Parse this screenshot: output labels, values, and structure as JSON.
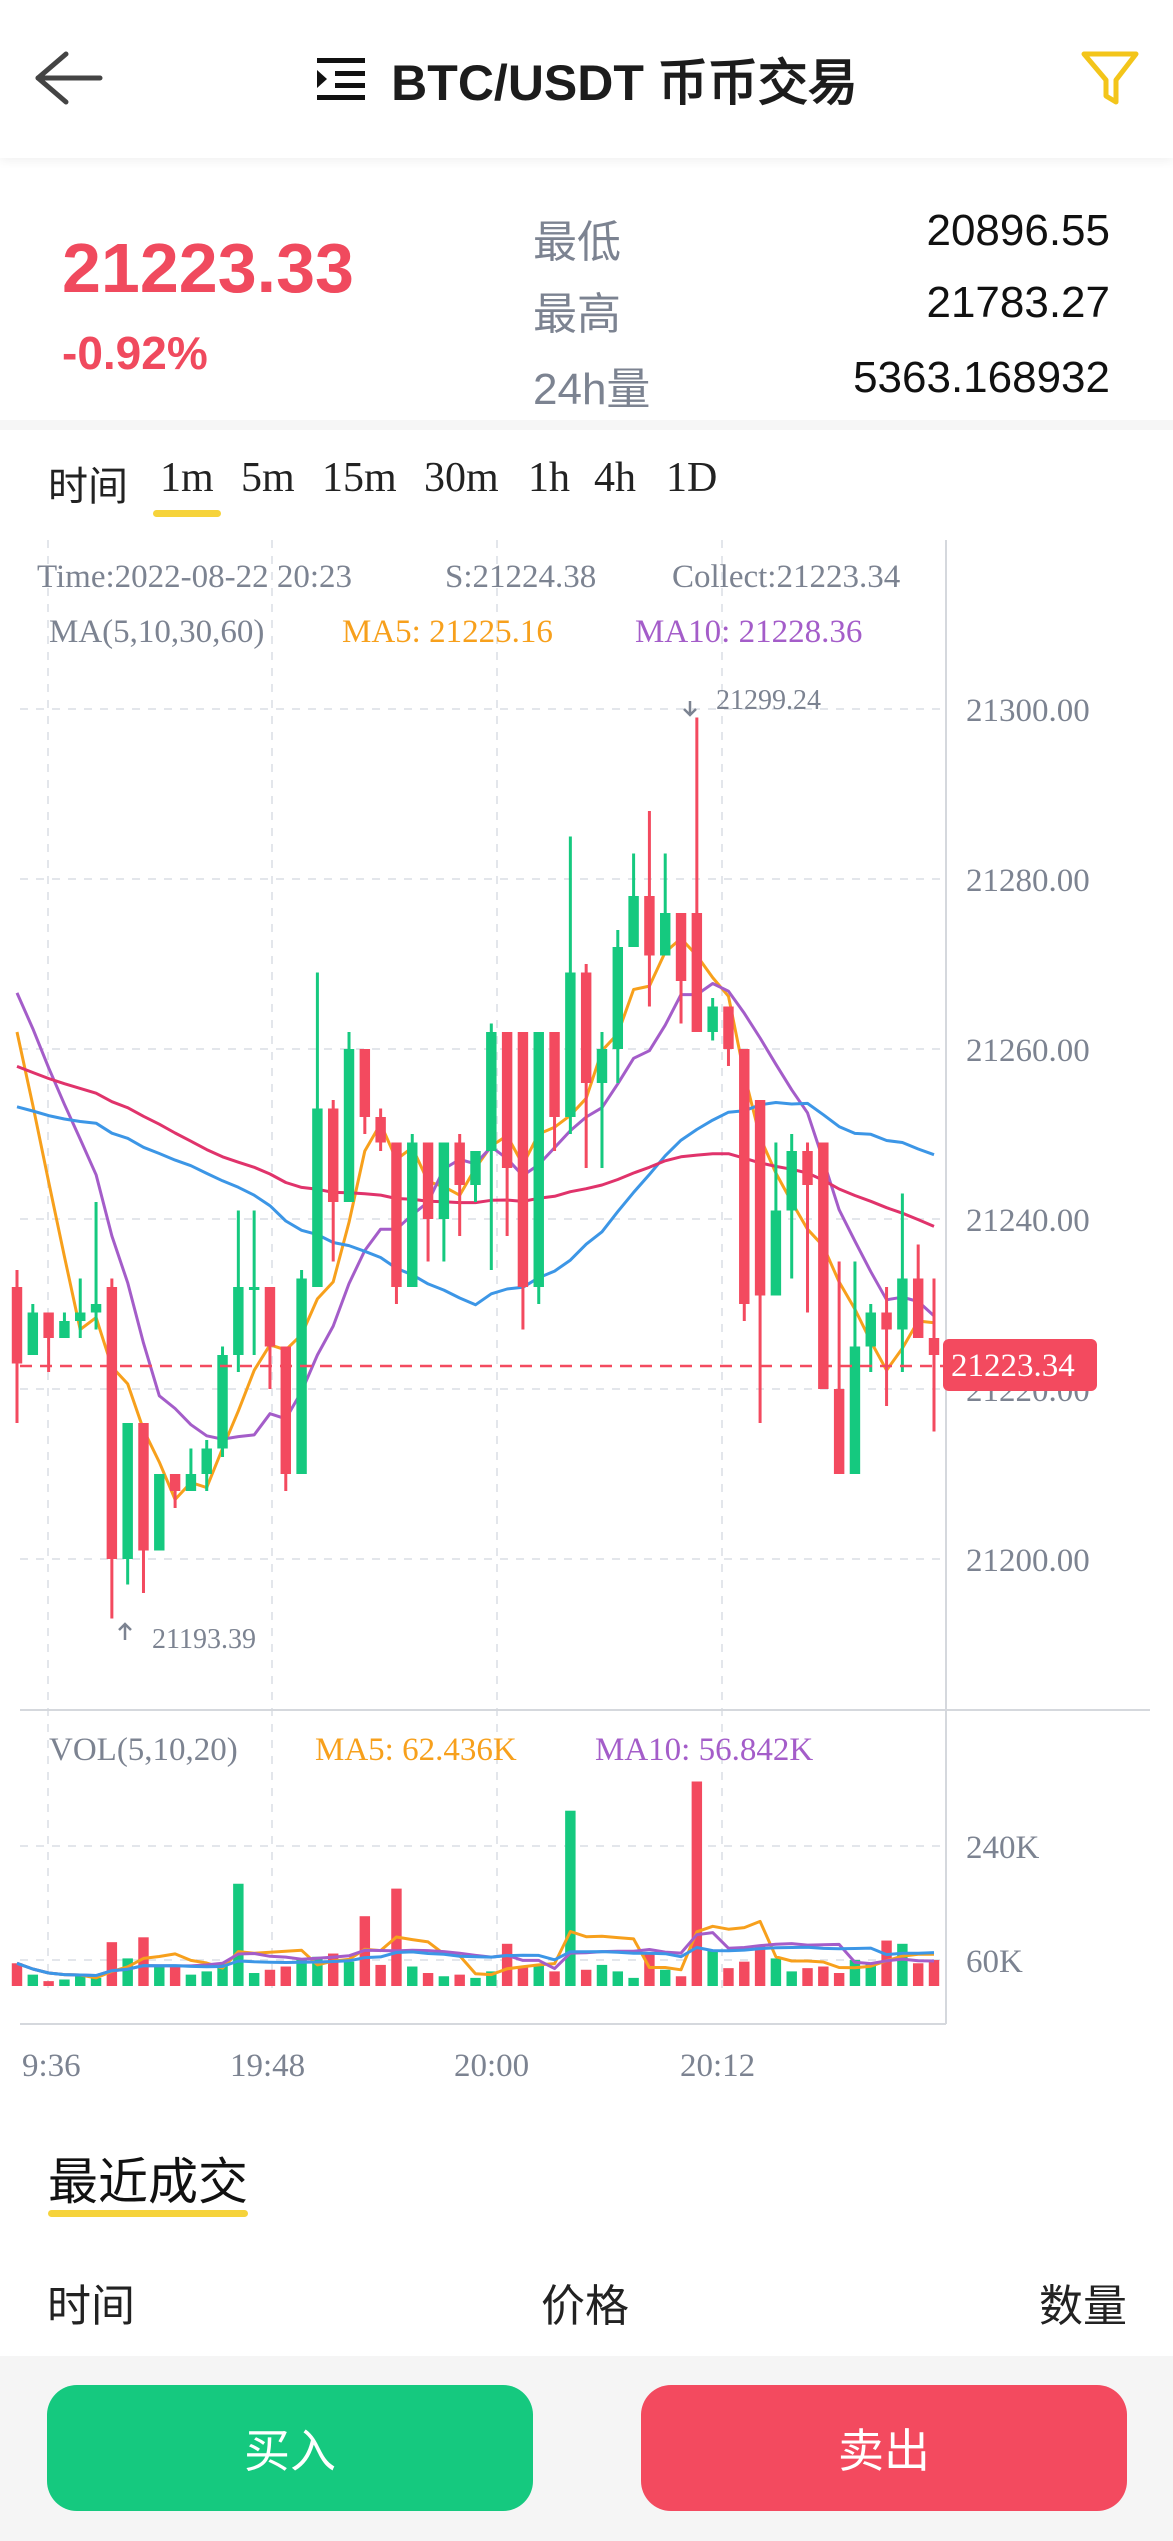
{
  "header": {
    "title": "BTC/USDT 币币交易"
  },
  "ticker": {
    "price": "21223.33",
    "change": "-0.92%",
    "stats": [
      {
        "label": "最低",
        "value": "20896.55"
      },
      {
        "label": "最高",
        "value": "21783.27"
      },
      {
        "label": "24h量",
        "value": "5363.168932"
      }
    ]
  },
  "intervals": {
    "label": "时间",
    "items": [
      "1m",
      "5m",
      "15m",
      "30m",
      "1h",
      "4h",
      "1D"
    ],
    "selected": "1m"
  },
  "chart_info": {
    "time": "Time:2022-08-22 20:23",
    "s": "S:21224.38",
    "collect": "Collect:21223.34",
    "ma_label": "MA(5,10,30,60)",
    "ma5": "MA5: 21225.16",
    "ma10": "MA10: 21228.36",
    "high_marker": "21299.24",
    "low_marker": "21193.39",
    "current_price": "21223.34",
    "vol_label": "VOL(5,10,20)",
    "vol_ma5": "MA5: 62.436K",
    "vol_ma10": "MA10: 56.842K"
  },
  "chart_data": {
    "type": "candlestick",
    "price_axis": [
      "21300.00",
      "21280.00",
      "21260.00",
      "21240.00",
      "21220.00",
      "21200.00"
    ],
    "volume_axis": [
      "240K",
      "60K"
    ],
    "time_axis": [
      "9:36",
      "19:48",
      "20:00",
      "20:12"
    ],
    "colors": {
      "up": "#15c97f",
      "down": "#f34a5f",
      "ma5": "#f7a01c",
      "ma10": "#a45dc9",
      "ma30": "#3c96e6",
      "ma60": "#e0336b"
    },
    "candles": [
      [
        21232,
        21223,
        21234,
        21216,
        14
      ],
      [
        21224,
        21229,
        21230,
        21225,
        7
      ],
      [
        21229,
        21226,
        21228,
        21222,
        3
      ],
      [
        21226,
        21228,
        21229,
        21226,
        4
      ],
      [
        21228,
        21229,
        21233,
        21226,
        6
      ],
      [
        21229,
        21230,
        21242,
        21227,
        5
      ],
      [
        21232,
        21200,
        21233,
        21193,
        27
      ],
      [
        21200,
        21216,
        21216,
        21197,
        17
      ],
      [
        21216,
        21201,
        21214,
        21196,
        30
      ],
      [
        21201,
        21210,
        21210,
        21204,
        12
      ],
      [
        21210,
        21208,
        21210,
        21206,
        13
      ],
      [
        21208,
        21210,
        21213,
        21208,
        7
      ],
      [
        21210,
        21213,
        21214,
        21208,
        9
      ],
      [
        21213,
        21224,
        21225,
        21212,
        14
      ],
      [
        21224,
        21232,
        21241,
        21222,
        63
      ],
      [
        21232,
        21232,
        21241,
        21224,
        8
      ],
      [
        21232,
        21225,
        21232,
        21220,
        10
      ],
      [
        21225,
        21210,
        21225,
        21208,
        12
      ],
      [
        21210,
        21233,
        21234,
        21210,
        17
      ],
      [
        21232,
        21253,
        21269,
        21232,
        18
      ],
      [
        21253,
        21242,
        21254,
        21235,
        20
      ],
      [
        21242,
        21260,
        21262,
        21242,
        15
      ],
      [
        21260,
        21252,
        21260,
        21250,
        43
      ],
      [
        21252,
        21249,
        21253,
        21248,
        13
      ],
      [
        21249,
        21232,
        21244,
        21230,
        60
      ],
      [
        21232,
        21249,
        21250,
        21236,
        12
      ],
      [
        21249,
        21240,
        21244,
        21235,
        8
      ],
      [
        21240,
        21249,
        21249,
        21235,
        6
      ],
      [
        21249,
        21244,
        21250,
        21238,
        7
      ],
      [
        21244,
        21248,
        21248,
        21242,
        5
      ],
      [
        21248,
        21262,
        21263,
        21234,
        9
      ],
      [
        21262,
        21246,
        21262,
        21238,
        26
      ],
      [
        21262,
        21232,
        21262,
        21227,
        12
      ],
      [
        21232,
        21262,
        21262,
        21230,
        13
      ],
      [
        21262,
        21252,
        21259,
        21248,
        9
      ],
      [
        21252,
        21269,
        21285,
        21250,
        108
      ],
      [
        21269,
        21256,
        21270,
        21246,
        10
      ],
      [
        21256,
        21260,
        21262,
        21246,
        13
      ],
      [
        21260,
        21272,
        21274,
        21256,
        9
      ],
      [
        21272,
        21278,
        21283,
        21276,
        5
      ],
      [
        21278,
        21271,
        21288,
        21265,
        20
      ],
      [
        21271,
        21276,
        21283,
        21271,
        10
      ],
      [
        21276,
        21268,
        21276,
        21263,
        6
      ],
      [
        21276,
        21262,
        21299,
        21262,
        126
      ],
      [
        21262,
        21265,
        21266,
        21261,
        22
      ],
      [
        21265,
        21260,
        21265,
        21258,
        11
      ],
      [
        21260,
        21230,
        21254,
        21228,
        15
      ],
      [
        21254,
        21231,
        21254,
        21216,
        25
      ],
      [
        21231,
        21241,
        21249,
        21231,
        17
      ],
      [
        21241,
        21248,
        21250,
        21233,
        9
      ],
      [
        21248,
        21244,
        21249,
        21229,
        11
      ],
      [
        21249,
        21220,
        21249,
        21220,
        12
      ],
      [
        21220,
        21210,
        21235,
        21210,
        8
      ],
      [
        21210,
        21225,
        21235,
        21210,
        16
      ],
      [
        21225,
        21229,
        21230,
        21222,
        14
      ],
      [
        21229,
        21227,
        21232,
        21218,
        28
      ],
      [
        21227,
        21233,
        21243,
        21222,
        26
      ],
      [
        21233,
        21226,
        21237,
        21226,
        14
      ],
      [
        21226,
        21224,
        21233,
        21215,
        16
      ]
    ]
  },
  "recent": {
    "tab": "最近成交",
    "columns": {
      "time": "时间",
      "price": "价格",
      "qty": "数量"
    }
  },
  "actions": {
    "buy": "买入",
    "sell": "卖出"
  }
}
